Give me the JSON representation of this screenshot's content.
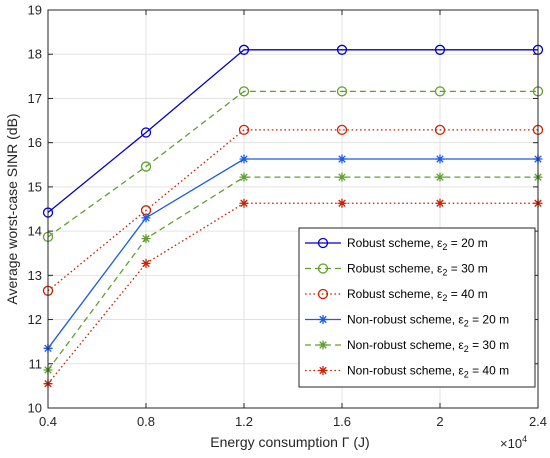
{
  "chart_data": {
    "type": "line",
    "xlabel": "Energy consumption Γ (J)",
    "ylabel": "Average worst-case SINR (dB)",
    "x_exponent_label": "×10",
    "x_exponent_power": "4",
    "x": [
      4000,
      8000,
      12000,
      16000,
      20000,
      24000
    ],
    "x_tick_labels": [
      "0.4",
      "0.8",
      "1.2",
      "1.6",
      "2",
      "2.4"
    ],
    "xlim": [
      4000,
      24000
    ],
    "ylim": [
      10,
      19
    ],
    "y_ticks": [
      10,
      11,
      12,
      13,
      14,
      15,
      16,
      17,
      18,
      19
    ],
    "grid": true,
    "legend_position": "bottom-right",
    "series": [
      {
        "name": "Robust scheme, ε",
        "sub": "2",
        "suffix": " = 20 m",
        "color": "#0000cc",
        "dash": "solid",
        "marker": "circle",
        "values": [
          14.42,
          16.23,
          18.1,
          18.1,
          18.1,
          18.1
        ]
      },
      {
        "name": "Robust scheme, ε",
        "sub": "2",
        "suffix": " = 30 m",
        "color": "#5fa02c",
        "dash": "dashed",
        "marker": "circle",
        "values": [
          13.87,
          15.46,
          17.16,
          17.16,
          17.16,
          17.16
        ]
      },
      {
        "name": "Robust scheme, ε",
        "sub": "2",
        "suffix": " = 40 m",
        "color": "#cc2200",
        "dash": "dotted",
        "marker": "circle",
        "values": [
          12.65,
          14.47,
          16.29,
          16.29,
          16.29,
          16.29
        ]
      },
      {
        "name": "Non-robust scheme, ε",
        "sub": "2",
        "suffix": " = 20 m",
        "color": "#1a5be8",
        "dash": "solid",
        "marker": "asterisk",
        "values": [
          11.35,
          14.3,
          15.63,
          15.63,
          15.63,
          15.63
        ]
      },
      {
        "name": "Non-robust scheme, ε",
        "sub": "2",
        "suffix": " = 30 m",
        "color": "#5fa02c",
        "dash": "dashed",
        "marker": "asterisk",
        "values": [
          10.86,
          13.83,
          15.22,
          15.22,
          15.22,
          15.22
        ]
      },
      {
        "name": "Non-robust scheme, ε",
        "sub": "2",
        "suffix": " = 40 m",
        "color": "#cc2200",
        "dash": "dotted",
        "marker": "asterisk",
        "values": [
          10.55,
          13.27,
          14.63,
          14.63,
          14.63,
          14.63
        ]
      }
    ]
  }
}
